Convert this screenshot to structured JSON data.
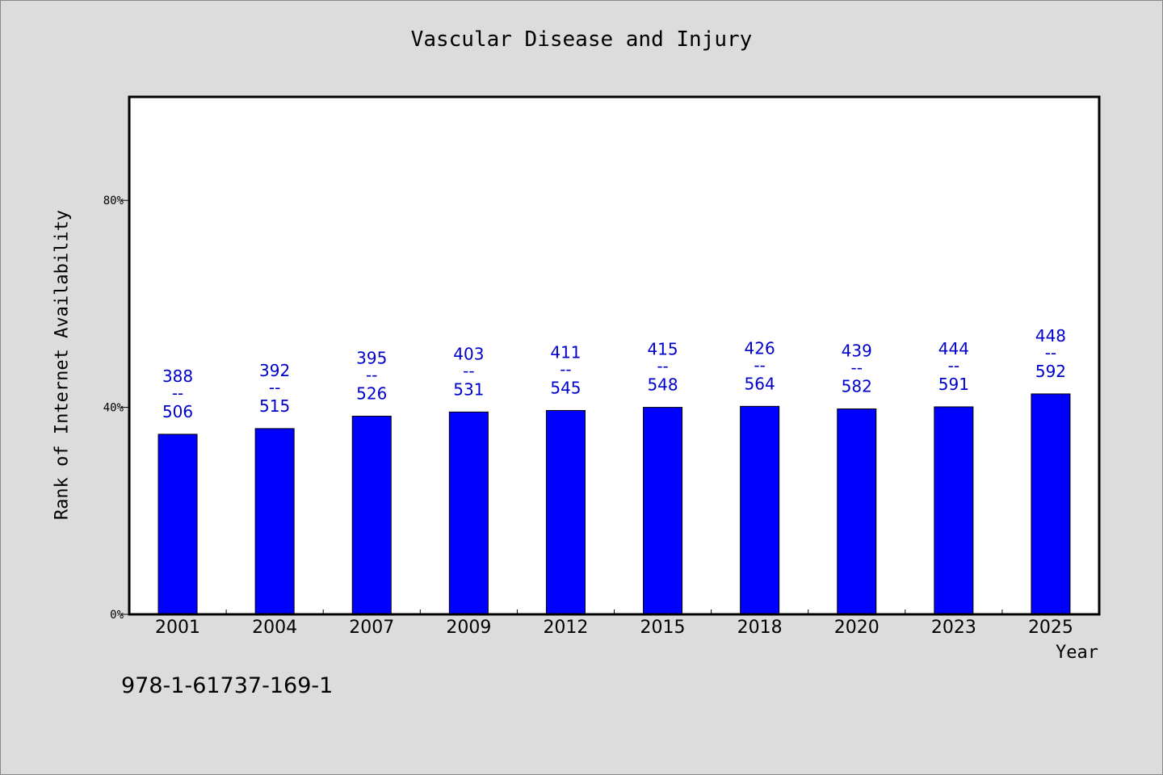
{
  "chart_data": {
    "type": "bar",
    "title": "Vascular Disease and Injury",
    "xlabel": "Year",
    "ylabel": "Rank of Internet Availability",
    "ylim": [
      0,
      100
    ],
    "yticks": [
      "0%",
      "40%",
      "80%"
    ],
    "ytick_values": [
      0,
      40,
      80
    ],
    "grid": false,
    "categories": [
      "2001",
      "2004",
      "2007",
      "2009",
      "2012",
      "2015",
      "2018",
      "2020",
      "2023",
      "2025"
    ],
    "values": [
      34.8,
      35.9,
      38.3,
      39.1,
      39.4,
      40.0,
      40.2,
      39.7,
      40.1,
      42.6
    ],
    "labels_top": [
      "388",
      "392",
      "395",
      "403",
      "411",
      "415",
      "426",
      "439",
      "444",
      "448"
    ],
    "labels_bottom": [
      "506",
      "515",
      "526",
      "531",
      "545",
      "548",
      "564",
      "582",
      "591",
      "592"
    ],
    "label_separator": "--",
    "bar_color": "#0000ff",
    "label_color": "#0000cc"
  },
  "footnote": "978-1-61737-169-1"
}
